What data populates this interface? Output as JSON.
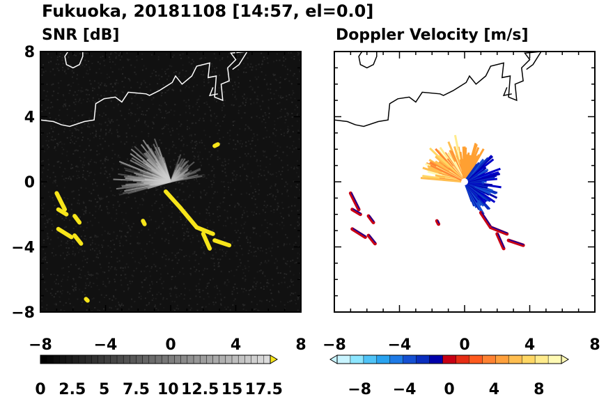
{
  "title": "Fukuoka, 20181108 [14:57, el=0.0]",
  "chart_data": [
    {
      "type": "heatmap",
      "title": "SNR [dB]",
      "xlim": [
        -8,
        8
      ],
      "ylim": [
        -8,
        8
      ],
      "x_ticks": [
        "−8",
        "−4",
        "0",
        "4",
        "8"
      ],
      "y_ticks": [
        "8",
        "4",
        "0",
        "−4",
        "−8"
      ],
      "colorbar": {
        "min": 0,
        "max": 18,
        "extend": "max",
        "tick_values": [
          0,
          2.5,
          5,
          7.5,
          10,
          12.5,
          15,
          17.5
        ],
        "tick_labels": [
          "0",
          "2.5",
          "5",
          "7.5",
          "10",
          "12.5",
          "15",
          "17.5"
        ],
        "extension_color": "#f7e51a"
      },
      "background_color": "#111111",
      "coastline_color": "#ffffff",
      "echo_color": "#f7e51a"
    },
    {
      "type": "heatmap",
      "title": "Doppler Velocity [m/s]",
      "xlim": [
        -8,
        8
      ],
      "ylim": [
        -8,
        8
      ],
      "x_ticks": [
        "−8",
        "−4",
        "0",
        "4",
        "8"
      ],
      "y_ticks": [],
      "colorbar": {
        "min": -10,
        "max": 10,
        "extend": "both",
        "tick_values": [
          -8,
          -4,
          0,
          4,
          8
        ],
        "tick_labels": [
          "−8",
          "−4",
          "0",
          "4",
          "8"
        ],
        "colors": [
          "#c8f4ff",
          "#8ce6ff",
          "#4fc3f7",
          "#29a3f0",
          "#1e7ae6",
          "#1550d2",
          "#0a2ebe",
          "#0000aa",
          "#c80014",
          "#e62d14",
          "#ff5a1e",
          "#ff8232",
          "#ffa03c",
          "#ffbe50",
          "#ffd764",
          "#ffeb8c",
          "#fffab4"
        ]
      },
      "background_color": "#ffffff",
      "coastline_color": "#000000",
      "approaching_color": "#0000c8",
      "receding_color": "#ffa032"
    }
  ]
}
